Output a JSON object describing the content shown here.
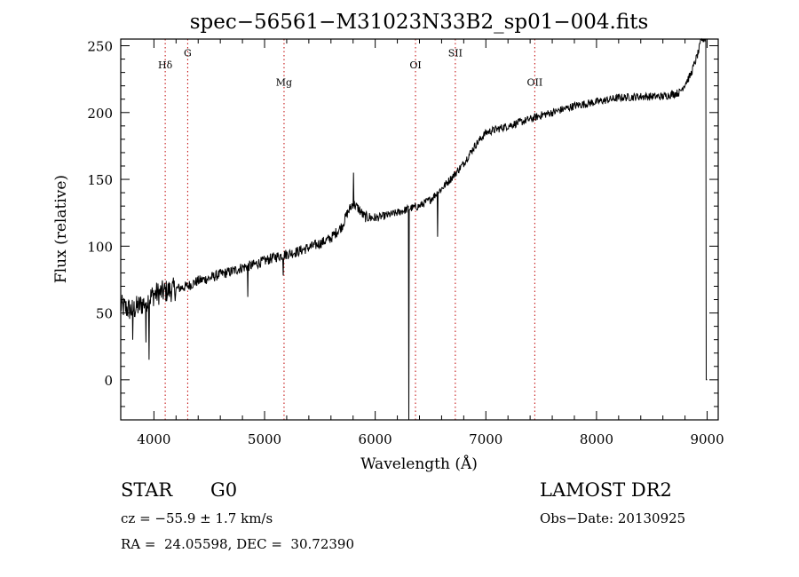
{
  "chart_data": {
    "type": "line",
    "title": "spec−56561−M31023N33B2_sp01−004.fits",
    "xlabel": "Wavelength (Å)",
    "ylabel": "Flux (relative)",
    "xlim": [
      3700,
      9100
    ],
    "ylim": [
      -30,
      255
    ],
    "xticks": [
      4000,
      5000,
      6000,
      7000,
      8000,
      9000
    ],
    "yticks": [
      0,
      50,
      100,
      150,
      200,
      250
    ],
    "lines": [
      {
        "label": "Hδ",
        "x": 4102,
        "label_y": 233
      },
      {
        "label": "G",
        "x": 4305,
        "label_y": 242
      },
      {
        "label": "Mg",
        "x": 5176,
        "label_y": 220
      },
      {
        "label": "OI",
        "x": 6364,
        "label_y": 233
      },
      {
        "label": "SII",
        "x": 6724,
        "label_y": 242
      },
      {
        "label": "OII",
        "x": 7442,
        "label_y": 220
      }
    ],
    "line_color": "#c00000",
    "series_color": "#000000",
    "spectrum_anchors": [
      [
        3700,
        55
      ],
      [
        3800,
        52
      ],
      [
        3900,
        57
      ],
      [
        4000,
        64
      ],
      [
        4100,
        66
      ],
      [
        4200,
        68
      ],
      [
        4300,
        70
      ],
      [
        4400,
        74
      ],
      [
        4500,
        76
      ],
      [
        4600,
        79
      ],
      [
        4700,
        81
      ],
      [
        4800,
        84
      ],
      [
        4900,
        86
      ],
      [
        5000,
        89
      ],
      [
        5100,
        92
      ],
      [
        5200,
        94
      ],
      [
        5300,
        96
      ],
      [
        5400,
        99
      ],
      [
        5500,
        102
      ],
      [
        5600,
        106
      ],
      [
        5700,
        115
      ],
      [
        5750,
        125
      ],
      [
        5800,
        132
      ],
      [
        5850,
        128
      ],
      [
        5900,
        122
      ],
      [
        6000,
        121
      ],
      [
        6100,
        123
      ],
      [
        6200,
        125
      ],
      [
        6300,
        128
      ],
      [
        6400,
        130
      ],
      [
        6500,
        135
      ],
      [
        6600,
        143
      ],
      [
        6700,
        152
      ],
      [
        6800,
        162
      ],
      [
        6900,
        175
      ],
      [
        7000,
        185
      ],
      [
        7200,
        190
      ],
      [
        7400,
        195
      ],
      [
        7500,
        198
      ],
      [
        7600,
        200
      ],
      [
        7800,
        205
      ],
      [
        8000,
        208
      ],
      [
        8200,
        211
      ],
      [
        8400,
        212
      ],
      [
        8600,
        212
      ],
      [
        8750,
        215
      ],
      [
        8850,
        228
      ],
      [
        8920,
        245
      ],
      [
        8950,
        255
      ],
      [
        9000,
        255
      ]
    ],
    "spectrum_features": [
      {
        "x": 3810,
        "y": 30
      },
      {
        "x": 3930,
        "y": 28
      },
      {
        "x": 3955,
        "y": 15
      },
      {
        "x": 4850,
        "y": 62
      },
      {
        "x": 5170,
        "y": 78
      },
      {
        "x": 5805,
        "y": 155
      },
      {
        "x": 6303,
        "y": -30
      },
      {
        "x": 6563,
        "y": 107
      },
      {
        "x": 9000,
        "y": 0
      }
    ]
  },
  "info": {
    "object_class": "STAR",
    "subclass": "G0",
    "survey": "LAMOST DR2",
    "redshift": "cz = −55.9 ± 1.7 km/s",
    "obs_date": "Obs−Date: 20130925",
    "coords": "RA =  24.05598, DEC =  30.72390"
  }
}
